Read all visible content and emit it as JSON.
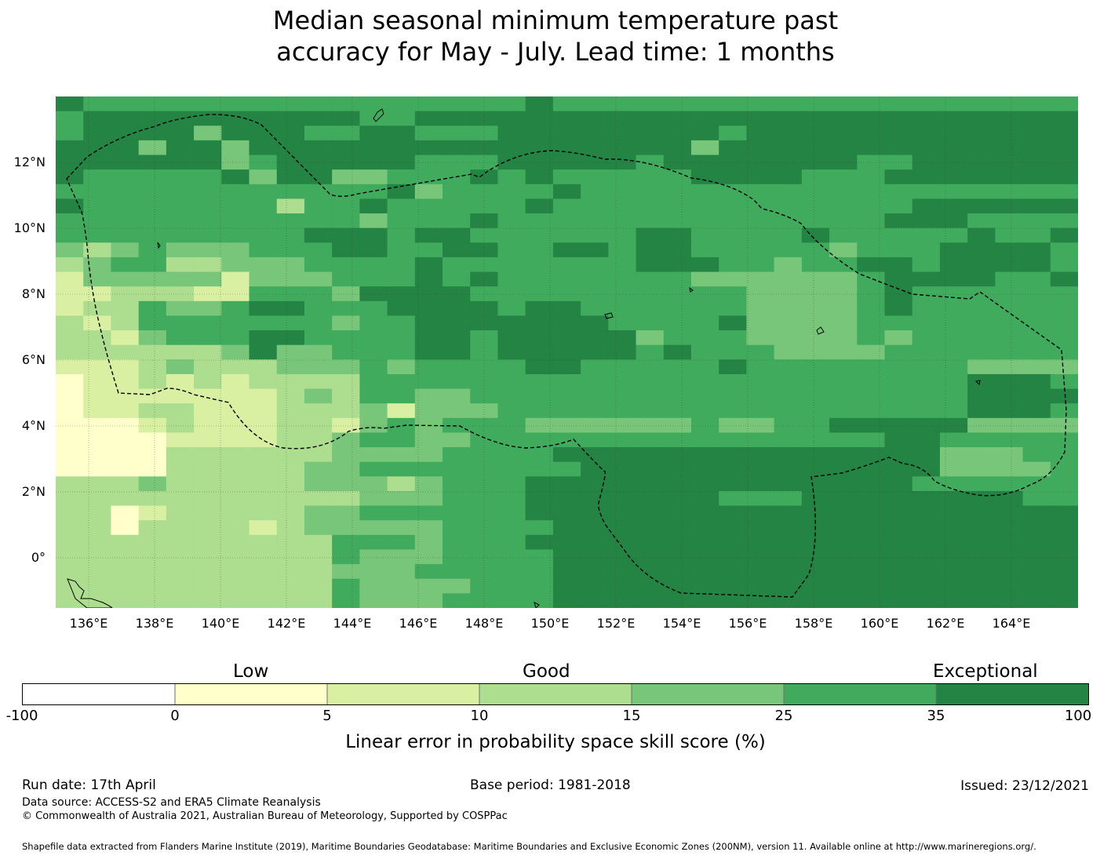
{
  "title": {
    "line1": "Median seasonal minimum temperature past",
    "line2": "accuracy for May - July. Lead time: 1 months"
  },
  "map": {
    "lat_labels": [
      "12°N",
      "10°N",
      "8°N",
      "6°N",
      "4°N",
      "2°N",
      "0°"
    ],
    "lon_labels": [
      "136°E",
      "138°E",
      "140°E",
      "142°E",
      "144°E",
      "146°E",
      "148°E",
      "150°E",
      "152°E",
      "154°E",
      "156°E",
      "158°E",
      "160°E",
      "162°E",
      "164°E"
    ],
    "colors": [
      "#ffffff",
      "#ffffcc",
      "#d9f0a3",
      "#addd8e",
      "#78c679",
      "#41ab5d",
      "#238443"
    ],
    "grid": [
      "6555555555555555565555555555555555555",
      "5666666666655666666666666666666666666",
      "5666646665566555666666665666666666666",
      "6664664666666666666666646666666666666",
      "6666664566666555666665666666655666666",
      "6555556466445556565555566665556666666",
      "5555555555556455556555555555555555555",
      "6555555535565555565555555555555666666",
      "5555555555545556555555555555556665555",
      "5555555556665665555556655556555556556",
      "4345444555665566556656655555455566665",
      "3455334445555655555556665545566566665",
      "2444442444555656555555544444456666556",
      "2233322555466665555555555444456555555",
      "2335445665556666566555555444456555555",
      "3235555555455666666655556444455555555",
      "3324555665555665666664555444454555555",
      "3333334644555665666665655544445555555",
      "2223433344454555566555556555555554444",
      "1223232333355555555555555555555556665",
      "1222222234355445555555555555555556666",
      "1223322233342444555555555555555556665",
      "1112322233245455544444454455666664444",
      "1111222233455445555555555555556655555",
      "1111333333444455556666666666666644455",
      "1111333334455555555666666666666644445",
      "3334333334443455566666666666666555555",
      "3333333333344455566666665556666666655",
      "3312333334455555566666666666666666666",
      "3313333234444455556666666666666666666",
      "3333333333555455566666666666666666666",
      "3333333333544455556666666666666666666",
      "3333333333444555556666666666666666666",
      "3333333333544445556666666666666666666",
      "3333333333544455556666666666666666666"
    ]
  },
  "colorbar": {
    "category_low": "Low",
    "category_good": "Good",
    "category_exceptional": "Exceptional",
    "bins": [
      {
        "from": -100,
        "to": 0,
        "color": "#ffffff"
      },
      {
        "from": 0,
        "to": 5,
        "color": "#ffffcc"
      },
      {
        "from": 5,
        "to": 10,
        "color": "#d9f0a3"
      },
      {
        "from": 10,
        "to": 15,
        "color": "#addd8e"
      },
      {
        "from": 15,
        "to": 25,
        "color": "#78c679"
      },
      {
        "from": 25,
        "to": 35,
        "color": "#41ab5d"
      },
      {
        "from": 35,
        "to": 100,
        "color": "#238443"
      }
    ],
    "ticks": [
      "-100",
      "0",
      "5",
      "10",
      "15",
      "25",
      "35",
      "100"
    ],
    "label": "Linear error in probability space skill score (%)"
  },
  "footer": {
    "run_date": "Run date: 17th April",
    "base_period": "Base period: 1981-2018",
    "issued": "Issued: 23/12/2021",
    "data_source": "Data source: ACCESS-S2 and ERA5 Climate Reanalysis",
    "copyright": "© Commonwealth of Australia 2021, Australian Bureau of Meteorology, Supported by COSPPac",
    "shapefile_note": "Shapefile data extracted from Flanders Marine Institute (2019), Maritime Boundaries Geodatabase: Maritime Boundaries and Exclusive Economic Zones (200NM), version 11. Available online at http://www.marineregions.org/."
  }
}
